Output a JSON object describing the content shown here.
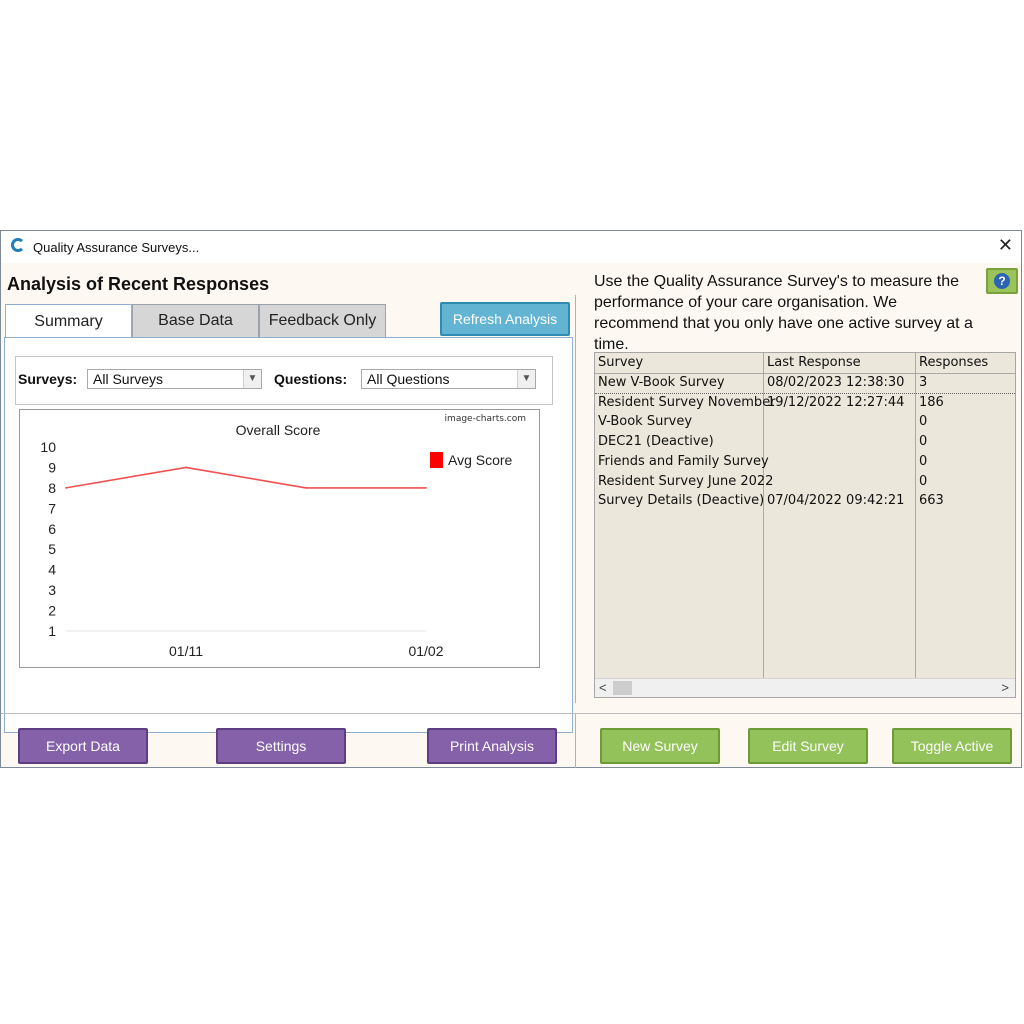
{
  "window": {
    "title": "Quality Assurance Surveys..."
  },
  "heading": "Analysis of Recent Responses",
  "tabs": [
    {
      "label": "Summary",
      "active": true
    },
    {
      "label": "Base Data",
      "active": false
    },
    {
      "label": "Feedback Only",
      "active": false
    }
  ],
  "refresh_label": "Refresh Analysis",
  "filters": {
    "surveys_label": "Surveys:",
    "surveys_value": "All Surveys",
    "questions_label": "Questions:",
    "questions_value": "All Questions"
  },
  "chart_data": {
    "type": "line",
    "title": "Overall Score",
    "watermark": "image-charts.com",
    "categories": [
      "",
      "01/11",
      "",
      "01/02"
    ],
    "series": [
      {
        "name": "Avg Score",
        "color": "#f05050",
        "values": [
          8,
          9,
          8,
          8
        ]
      }
    ],
    "ylim": [
      1,
      10
    ],
    "yticks": [
      10,
      9,
      8,
      7,
      6,
      5,
      4,
      3,
      2,
      1
    ],
    "grid": false,
    "legend": "top-right"
  },
  "intro_text": "Use the Quality Assurance Survey's to measure the performance of your care organisation.  We recommend that you only have one active survey at a time.",
  "grid": {
    "columns": [
      "Survey",
      "Last Response",
      "Responses"
    ],
    "rows": [
      {
        "survey": "New V-Book Survey",
        "last": "08/02/2023 12:38:30",
        "responses": "3"
      },
      {
        "survey": "Resident Survey November",
        "last": "19/12/2022 12:27:44",
        "responses": "186"
      },
      {
        "survey": "V-Book Survey",
        "last": "",
        "responses": "0"
      },
      {
        "survey": "DEC21 (Deactive)",
        "last": "",
        "responses": "0"
      },
      {
        "survey": "Friends and Family Survey",
        "last": "",
        "responses": "0"
      },
      {
        "survey": "Resident Survey June 2022",
        "last": "",
        "responses": "0"
      },
      {
        "survey": "Survey Details (Deactive)",
        "last": "07/04/2022 09:42:21",
        "responses": "663"
      }
    ]
  },
  "buttons": {
    "export": "Export Data",
    "settings": "Settings",
    "print": "Print Analysis",
    "new_survey": "New Survey",
    "edit_survey": "Edit Survey",
    "toggle_active": "Toggle Active"
  },
  "icons": {
    "app": "app-logo-icon",
    "close": "close-icon",
    "help": "help-icon",
    "dropdown": "chevron-down-icon"
  }
}
